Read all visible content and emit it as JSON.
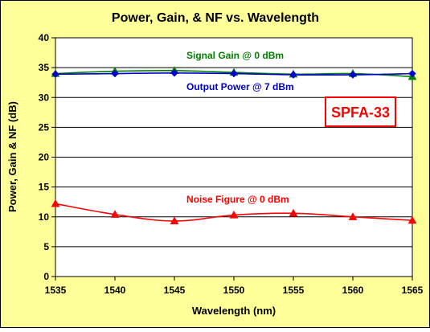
{
  "colors": {
    "chart_area_bg": "#FFFF99",
    "plot_area_bg": "#FFFFFF",
    "border": "#000000",
    "grid": "#000000",
    "gain_series": "#008000",
    "power_series": "#0000CC",
    "nf_series": "#FF0000",
    "badge_text": "#FF0000",
    "badge_border": "#FF0000"
  },
  "chart_data": {
    "type": "line",
    "title": "Power, Gain, & NF vs. Wavelength",
    "xlabel": "Wavelength (nm)",
    "ylabel": "Power, Gain & NF (dB)",
    "xlim": [
      1535,
      1565
    ],
    "ylim": [
      0,
      40
    ],
    "x_ticks": [
      "1535",
      "1540",
      "1545",
      "1550",
      "1555",
      "1560",
      "1565"
    ],
    "y_ticks": [
      "0",
      "5",
      "10",
      "15",
      "20",
      "25",
      "30",
      "35",
      "40"
    ],
    "grid": "horizontal",
    "badge": "SPFA-33",
    "series": [
      {
        "name": "Signal Gain @ 0 dBm",
        "marker": "triangle",
        "x": [
          1535,
          1540,
          1545,
          1550,
          1555,
          1560,
          1565
        ],
        "values": [
          34.0,
          34.4,
          34.5,
          34.2,
          33.9,
          34.0,
          33.5
        ]
      },
      {
        "name": "Output Power @ 7 dBm",
        "marker": "diamond",
        "x": [
          1535,
          1540,
          1545,
          1550,
          1555,
          1560,
          1565
        ],
        "values": [
          33.9,
          34.0,
          34.1,
          34.0,
          33.8,
          33.8,
          34.0
        ]
      },
      {
        "name": "Noise Figure @ 0 dBm",
        "marker": "triangle",
        "x": [
          1535,
          1540,
          1545,
          1550,
          1555,
          1560,
          1565
        ],
        "values": [
          12.2,
          10.4,
          9.3,
          10.3,
          10.6,
          10.0,
          9.4
        ]
      }
    ]
  }
}
